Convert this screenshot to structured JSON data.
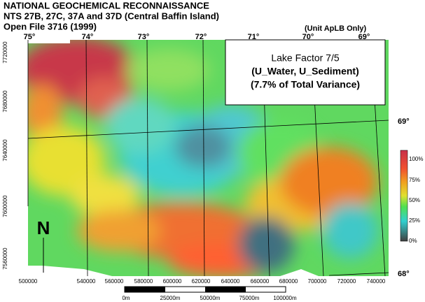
{
  "header": {
    "lines": [
      "NATIONAL GEOCHEMICAL RECONNAISSANCE",
      "NTS 27B, 27C, 37A and 37D (Central Baffin Island)",
      "Open File 3716 (1999)"
    ],
    "note": "(Unit ApLB Only)"
  },
  "info_box": {
    "lines": [
      "Lake Factor 7/5",
      "(U_Water, U_Sediment)",
      "(7.7% of Total Variance)"
    ]
  },
  "longitude_labels": [
    "75°",
    "74°",
    "73°",
    "72°",
    "71°",
    "70°",
    "69°"
  ],
  "latitude_labels": [
    "69°",
    "68°"
  ],
  "easting_labels": [
    "500000",
    "540000",
    "560000",
    "580000",
    "600000",
    "620000",
    "640000",
    "660000",
    "680000",
    "700000",
    "720000",
    "740000"
  ],
  "northing_labels": [
    "7720000",
    "7680000",
    "7640000",
    "7600000",
    "7560000"
  ],
  "legend": {
    "labels": [
      "100%",
      "75%",
      "50%",
      "25%",
      "0%"
    ]
  },
  "scale_bar": {
    "labels": [
      "0m",
      "25000m",
      "50000m",
      "75000m",
      "100000m"
    ]
  },
  "north_arrow": "N"
}
